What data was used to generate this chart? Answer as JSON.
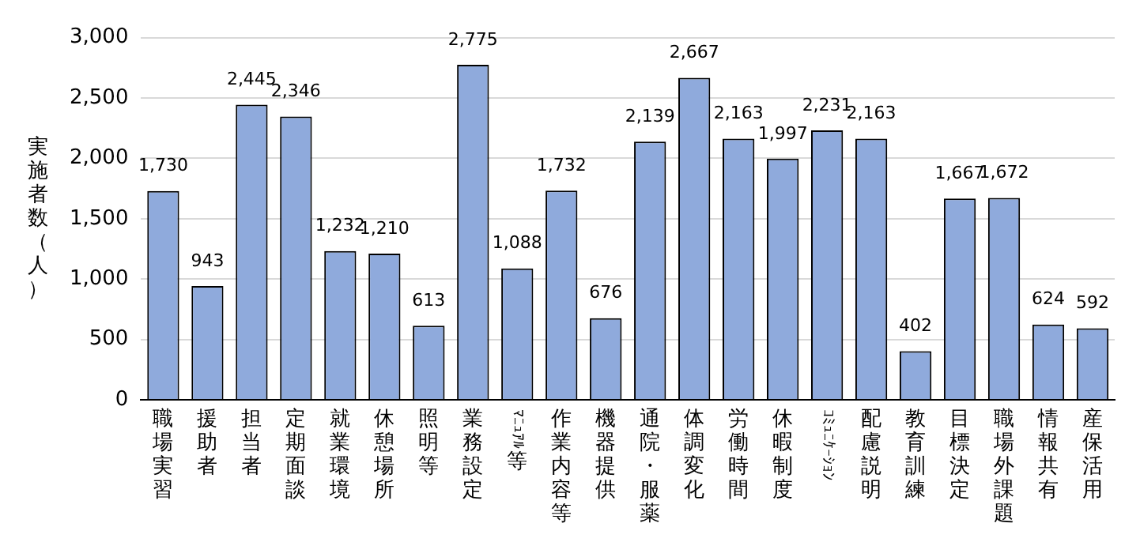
{
  "chart_data": {
    "type": "bar",
    "ylabel": "実施者数（人）",
    "categories": [
      "職場実習",
      "援助者",
      "担当者",
      "定期面談",
      "就業環境",
      "休憩場所",
      "照明等",
      "業務設定",
      "ﾏﾆｭｱﾙ等",
      "作業内容等",
      "機器提供",
      "通院・服薬",
      "体調変化",
      "労働時間",
      "休暇制度",
      "ｺﾐｭﾆｹｰｼｮﾝ",
      "配慮説明",
      "教育訓練",
      "目標決定",
      "職場外課題",
      "情報共有",
      "産保活用"
    ],
    "values": [
      1730,
      943,
      2445,
      2346,
      1232,
      1210,
      613,
      2775,
      1088,
      1732,
      676,
      2139,
      2667,
      2163,
      1997,
      2231,
      2163,
      402,
      1667,
      1672,
      624,
      592
    ],
    "value_labels": [
      "1,730",
      "943",
      "2,445",
      "2,346",
      "1,232",
      "1,210",
      "613",
      "2,775",
      "1,088",
      "1,732",
      "676",
      "2,139",
      "2,667",
      "2,163",
      "1,997",
      "2,231",
      "2,163",
      "402",
      "1,667",
      "1,672",
      "624",
      "592"
    ],
    "color": "#8faadc",
    "ylim": [
      0,
      3000
    ],
    "yticks": [
      0,
      500,
      {
        "value": 1000,
        "label": "1,000"
      },
      {
        "value": 1500,
        "label": "1,500"
      },
      {
        "value": 2000,
        "label": "2,000"
      },
      {
        "value": 2500,
        "label": "2,500"
      },
      {
        "value": 3000,
        "label": "3,000"
      }
    ],
    "grid": "y"
  }
}
